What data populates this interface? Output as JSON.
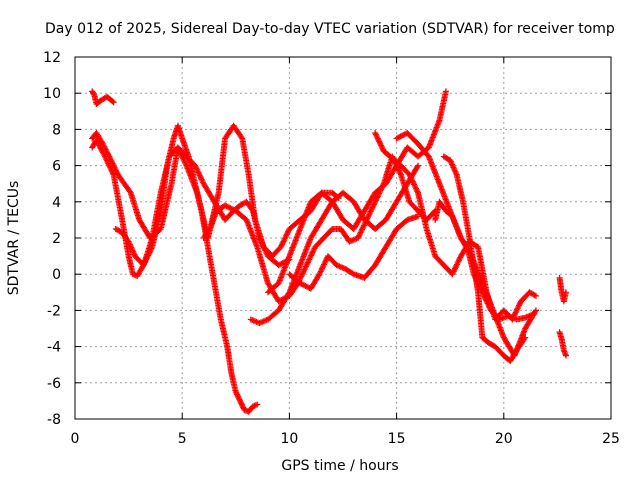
{
  "chart_data": {
    "type": "scatter",
    "title": "Day 012 of 2025, Sidereal Day-to-day VTEC variation (SDTVAR) for receiver tomp",
    "xlabel": "GPS time / hours",
    "ylabel": "SDTVAR / TECUs",
    "xlim": [
      0,
      25
    ],
    "ylim": [
      -8,
      12
    ],
    "xticks": [
      "0",
      "5",
      "10",
      "15",
      "20",
      "25"
    ],
    "yticks": [
      "-8",
      "-6",
      "-4",
      "-2",
      "0",
      "2",
      "4",
      "6",
      "8",
      "10",
      "12"
    ],
    "grid": true,
    "marker": "+",
    "color": "#ff0000",
    "series": [
      {
        "x": [
          0.8,
          0.9,
          1.0,
          1.2,
          1.5,
          1.8
        ],
        "y": [
          10.1,
          9.9,
          9.4,
          9.6,
          9.8,
          9.5
        ]
      },
      {
        "x": [
          0.8,
          1.0,
          1.3,
          1.6,
          2.0,
          2.3,
          2.6,
          3.0,
          3.5,
          4.0,
          4.5,
          4.8,
          5.2,
          5.6,
          6.0,
          6.5,
          7.0,
          7.4,
          7.7,
          8.0,
          8.3,
          8.6,
          9.0,
          9.5,
          10.0
        ],
        "y": [
          7.5,
          7.8,
          7.2,
          6.5,
          5.5,
          5.0,
          4.5,
          3.0,
          2.0,
          2.5,
          5.0,
          7.0,
          6.5,
          6.0,
          5.0,
          4.0,
          3.0,
          3.5,
          3.8,
          4.0,
          3.5,
          2.0,
          1.0,
          0.5,
          0.8
        ]
      },
      {
        "x": [
          0.8,
          1.0,
          1.4,
          1.8,
          2.2,
          2.5,
          2.7,
          2.9,
          3.2,
          3.6,
          4.0,
          4.3,
          4.6,
          4.8,
          5.0,
          5.3,
          5.6,
          5.9,
          6.2,
          6.5,
          6.8,
          7.1,
          7.3,
          7.5,
          7.7,
          7.9,
          8.1,
          8.3,
          8.5
        ],
        "y": [
          7.0,
          7.4,
          6.5,
          5.5,
          3.0,
          1.0,
          0.0,
          -0.1,
          0.5,
          1.5,
          3.5,
          6.0,
          7.5,
          8.2,
          7.5,
          6.5,
          5.0,
          3.5,
          1.5,
          -0.5,
          -2.5,
          -4.0,
          -5.5,
          -6.5,
          -7.0,
          -7.5,
          -7.6,
          -7.3,
          -7.2
        ]
      },
      {
        "x": [
          1.9,
          2.2,
          2.5,
          2.8,
          3.2,
          3.6,
          4.0,
          4.4,
          4.8,
          5.2,
          5.7,
          6.2,
          6.7,
          7.0,
          7.4,
          7.8,
          8.1,
          8.4,
          8.8,
          9.2,
          9.6,
          10.0,
          10.5,
          11.0,
          11.5,
          12.0,
          12.5,
          13.0,
          13.5,
          14.0,
          14.5,
          15.0,
          15.5,
          16.0,
          16.5,
          17.0,
          17.3
        ],
        "y": [
          2.5,
          2.3,
          1.8,
          1.0,
          0.5,
          2.0,
          4.5,
          6.5,
          7.0,
          6.0,
          4.5,
          2.0,
          4.5,
          7.5,
          8.2,
          7.5,
          5.5,
          3.0,
          1.5,
          1.0,
          1.5,
          2.5,
          3.0,
          3.5,
          4.5,
          4.0,
          3.0,
          2.5,
          3.5,
          4.5,
          5.0,
          6.0,
          7.0,
          6.5,
          7.0,
          8.5,
          10.1
        ]
      },
      {
        "x": [
          6.0,
          6.3,
          6.6,
          7.0,
          7.5,
          8.0,
          8.5,
          9.0,
          9.5,
          10.0,
          10.4,
          10.8,
          11.2,
          11.6,
          12.0,
          12.4,
          12.8,
          13.2,
          13.6,
          14.0,
          14.4,
          14.8,
          15.2,
          15.6,
          16.0,
          16.4,
          16.8
        ],
        "y": [
          2.0,
          2.5,
          3.5,
          3.8,
          3.5,
          3.0,
          1.5,
          -0.5,
          -1.5,
          -1.2,
          -0.5,
          0.5,
          1.5,
          2.0,
          2.5,
          2.5,
          1.8,
          2.0,
          3.0,
          4.0,
          5.0,
          6.5,
          5.5,
          4.0,
          3.5,
          3.0,
          3.5
        ]
      },
      {
        "x": [
          8.2,
          8.6,
          9.0,
          9.5,
          10.0,
          10.5,
          11.0,
          11.5,
          12.0,
          12.5,
          13.0,
          13.5,
          14.0,
          14.5,
          15.0,
          15.5,
          16.0
        ],
        "y": [
          -2.5,
          -2.7,
          -2.5,
          -2.0,
          -1.0,
          0.5,
          2.0,
          3.0,
          4.0,
          4.5,
          4.0,
          3.0,
          2.5,
          3.0,
          4.0,
          5.0,
          6.0
        ]
      },
      {
        "x": [
          9.0,
          9.5,
          10.0,
          10.5,
          11.0,
          11.5,
          12.0,
          12.3
        ],
        "y": [
          -1.0,
          -0.5,
          1.0,
          2.5,
          4.0,
          4.5,
          4.5,
          4.2
        ]
      },
      {
        "x": [
          10.0,
          10.5,
          11.0,
          11.4,
          11.8,
          12.2,
          12.6,
          13.0,
          13.5,
          14.0,
          14.5,
          15.0,
          15.5,
          16.0
        ],
        "y": [
          0.0,
          -0.5,
          -0.8,
          0.0,
          1.0,
          0.5,
          0.3,
          0.0,
          -0.2,
          0.5,
          1.5,
          2.5,
          3.0,
          3.2
        ]
      },
      {
        "x": [
          14.0,
          14.4,
          14.8,
          15.2,
          15.6,
          16.0,
          16.4,
          16.8,
          17.2,
          17.6,
          18.0,
          18.4,
          18.8,
          19.2,
          19.6,
          20.0,
          20.4,
          20.8,
          21.2,
          21.5
        ],
        "y": [
          7.8,
          6.8,
          6.4,
          6.0,
          5.5,
          4.5,
          2.5,
          1.0,
          0.5,
          0.0,
          1.0,
          1.8,
          1.5,
          -1.0,
          -2.5,
          -2.0,
          -2.5,
          -1.5,
          -1.0,
          -1.2
        ]
      },
      {
        "x": [
          15.0,
          15.5,
          16.0,
          16.5,
          17.0,
          17.5,
          18.0,
          18.5,
          19.0,
          19.5,
          20.0,
          20.5,
          21.0,
          21.5
        ],
        "y": [
          7.5,
          7.8,
          7.2,
          6.5,
          5.0,
          3.5,
          2.0,
          1.0,
          -0.5,
          -2.0,
          -3.5,
          -4.5,
          -3.0,
          -2.0
        ]
      },
      {
        "x": [
          16.8,
          17.0,
          17.3,
          17.6,
          18.0,
          18.3,
          18.6,
          19.0,
          19.4,
          19.8,
          20.2,
          20.6,
          21.0,
          21.4
        ],
        "y": [
          3.0,
          4.0,
          3.5,
          3.2,
          2.0,
          1.5,
          0.0,
          -1.0,
          -2.0,
          -2.5,
          -2.3,
          -2.5,
          -2.4,
          -2.2
        ]
      },
      {
        "x": [
          17.2,
          17.5,
          17.8,
          18.1,
          18.4,
          18.6,
          18.8,
          19.0,
          19.3,
          19.6,
          20.0,
          20.3,
          20.6,
          21.0
        ],
        "y": [
          6.5,
          6.3,
          5.5,
          4.0,
          2.0,
          0.5,
          -1.0,
          -3.5,
          -3.8,
          -4.0,
          -4.5,
          -4.8,
          -4.2,
          -3.5
        ]
      },
      {
        "x": [
          22.6,
          22.7,
          22.8,
          22.9
        ],
        "y": [
          -0.2,
          -1.0,
          -1.5,
          -1.0
        ]
      },
      {
        "x": [
          22.6,
          22.7,
          22.8,
          22.9
        ],
        "y": [
          -3.2,
          -3.6,
          -4.2,
          -4.5
        ]
      }
    ]
  }
}
